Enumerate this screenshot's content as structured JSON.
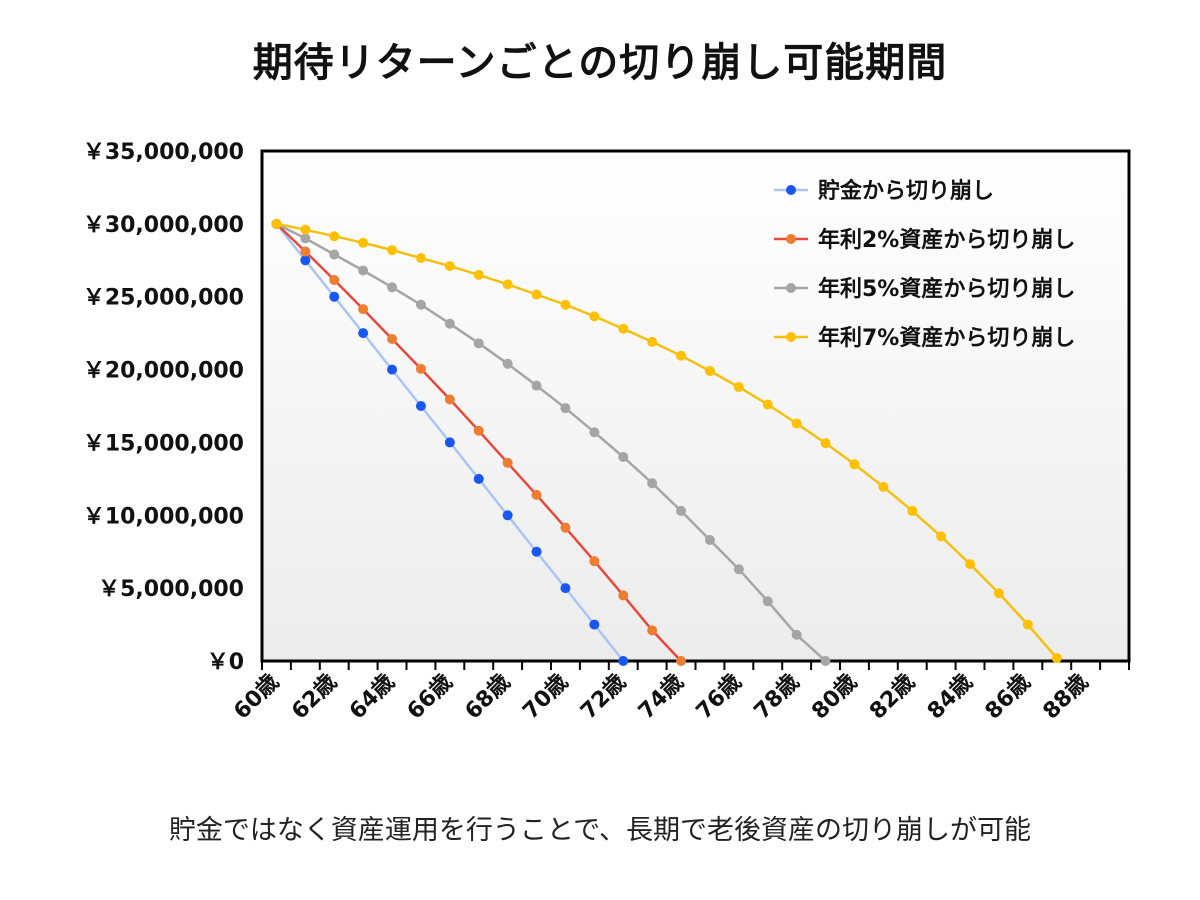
{
  "chart_data": {
    "type": "line",
    "title": "期待リターンごとの切り崩し可能期間",
    "xlabel": "",
    "ylabel": "",
    "ylim": [
      0,
      35000000
    ],
    "y_ticks": [
      0,
      5000000,
      10000000,
      15000000,
      20000000,
      25000000,
      30000000,
      35000000
    ],
    "y_tick_labels": [
      "￥0",
      "￥5,000,000",
      "￥10,000,000",
      "￥15,000,000",
      "￥20,000,000",
      "￥25,000,000",
      "￥30,000,000",
      "￥35,000,000"
    ],
    "x_range": [
      60,
      90
    ],
    "x_ticks": [
      60,
      62,
      64,
      66,
      68,
      70,
      72,
      74,
      76,
      78,
      80,
      82,
      84,
      86,
      88
    ],
    "x_tick_labels": [
      "60歳",
      "62歳",
      "64歳",
      "66歳",
      "68歳",
      "70歳",
      "72歳",
      "74歳",
      "76歳",
      "78歳",
      "80歳",
      "82歳",
      "84歳",
      "86歳",
      "88歳"
    ],
    "grid": false,
    "legend_position": "top-right",
    "series": [
      {
        "name": "貯金から切り崩し",
        "color": "#1a56f0",
        "line_color": "#a9c4f5",
        "x": [
          60.5,
          61.5,
          62.5,
          63.5,
          64.5,
          65.5,
          66.5,
          67.5,
          68.5,
          69.5,
          70.5,
          71.5,
          72.5
        ],
        "y": [
          30000000,
          27500000,
          25000000,
          22500000,
          20000000,
          17500000,
          15000000,
          12500000,
          10000000,
          7500000,
          5000000,
          2500000,
          0
        ]
      },
      {
        "name": "年利2%資産から切り崩し",
        "color": "#ed7d31",
        "line_color": "#e8493a",
        "x": [
          60.5,
          61.5,
          62.5,
          63.5,
          64.5,
          65.5,
          66.5,
          67.5,
          68.5,
          69.5,
          70.5,
          71.5,
          72.5,
          73.5,
          74.5
        ],
        "y": [
          30000000,
          28100000,
          26150000,
          24150000,
          22100000,
          20050000,
          17950000,
          15800000,
          13600000,
          11400000,
          9150000,
          6850000,
          4500000,
          2100000,
          0
        ]
      },
      {
        "name": "年利5%資産から切り崩し",
        "color": "#a5a5a5",
        "line_color": "#a5a5a5",
        "x": [
          60.5,
          61.5,
          62.5,
          63.5,
          64.5,
          65.5,
          66.5,
          67.5,
          68.5,
          69.5,
          70.5,
          71.5,
          72.5,
          73.5,
          74.5,
          75.5,
          76.5,
          77.5,
          78.5,
          79.5
        ],
        "y": [
          30000000,
          29000000,
          27900000,
          26800000,
          25650000,
          24450000,
          23150000,
          21800000,
          20400000,
          18900000,
          17350000,
          15700000,
          14000000,
          12200000,
          10300000,
          8300000,
          6300000,
          4100000,
          1800000,
          0
        ]
      },
      {
        "name": "年利7%資産から切り崩し",
        "color": "#ffc000",
        "line_color": "#f5bf10",
        "x": [
          60.5,
          61.5,
          62.5,
          63.5,
          64.5,
          65.5,
          66.5,
          67.5,
          68.5,
          69.5,
          70.5,
          71.5,
          72.5,
          73.5,
          74.5,
          75.5,
          76.5,
          77.5,
          78.5,
          79.5,
          80.5,
          81.5,
          82.5,
          83.5,
          84.5,
          85.5,
          86.5,
          87.5
        ],
        "y": [
          30000000,
          29600000,
          29150000,
          28700000,
          28200000,
          27650000,
          27100000,
          26500000,
          25850000,
          25150000,
          24450000,
          23650000,
          22800000,
          21900000,
          20950000,
          19900000,
          18800000,
          17600000,
          16300000,
          14950000,
          13500000,
          11950000,
          10300000,
          8550000,
          6650000,
          4650000,
          2500000,
          200000
        ]
      }
    ]
  },
  "caption": "貯金ではなく資産運用を行うことで、長期で老後資産の切り崩しが可能"
}
